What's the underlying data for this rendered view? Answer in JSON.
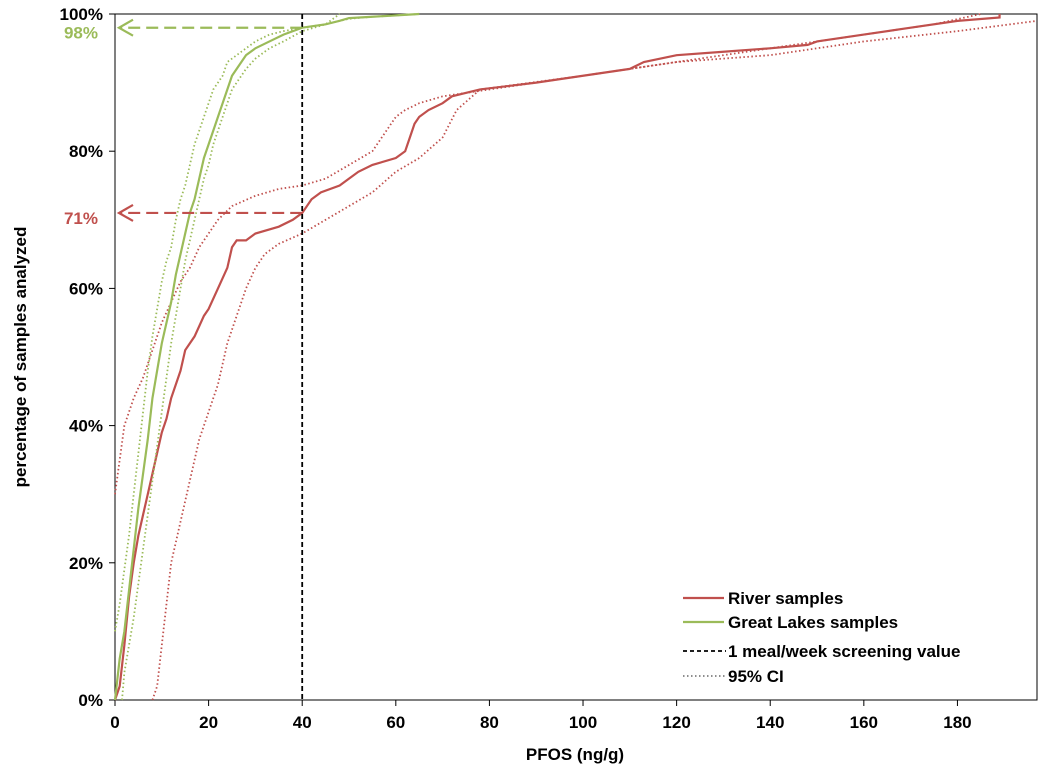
{
  "chart_data": {
    "type": "line",
    "xlabel": "PFOS (ng/g)",
    "ylabel": "percentage of samples analyzed",
    "xlim": [
      0,
      197
    ],
    "ylim": [
      0,
      100
    ],
    "x_ticks": [
      0,
      20,
      40,
      60,
      80,
      100,
      120,
      140,
      160,
      180
    ],
    "x_tick_labels": [
      "0",
      "20",
      "40",
      "60",
      "80",
      "100",
      "120",
      "140",
      "160",
      "180"
    ],
    "y_ticks": [
      0,
      20,
      40,
      60,
      80,
      100
    ],
    "y_tick_labels": [
      "0%",
      "20%",
      "40%",
      "60%",
      "80%",
      "100%"
    ],
    "grid": false,
    "legend_position": "bottom-right",
    "colors": {
      "river": "#c0504d",
      "great_lakes": "#9bbb59",
      "screening": "#000000",
      "ci": "#7f7f7f"
    },
    "legend": [
      {
        "label": "River samples",
        "style": "river"
      },
      {
        "label": "Great Lakes samples",
        "style": "great_lakes"
      },
      {
        "label": "1 meal/week screening value",
        "style": "screening"
      },
      {
        "label": "95% CI",
        "style": "ci"
      }
    ],
    "screening_value": {
      "x": 40,
      "y": [
        0,
        100
      ]
    },
    "annotations": [
      {
        "label": "98%",
        "y": 98,
        "x_from": 40,
        "series": "great_lakes"
      },
      {
        "label": "71%",
        "y": 71,
        "x_from": 40,
        "series": "river"
      }
    ],
    "series": [
      {
        "name": "River samples",
        "key": "river",
        "style": "solid",
        "x": [
          0,
          1,
          2,
          3,
          4,
          5,
          6,
          7,
          8,
          9,
          10,
          11,
          12,
          14,
          15,
          17,
          19,
          20,
          22,
          24,
          25,
          26,
          28,
          30,
          35,
          38,
          40,
          42,
          44,
          48,
          50,
          52,
          55,
          60,
          62,
          63,
          64,
          65,
          67,
          70,
          72,
          78,
          90,
          100,
          110,
          113,
          120,
          130,
          140,
          148,
          150,
          160,
          170,
          180,
          189,
          189
        ],
        "y": [
          0,
          2,
          8,
          15,
          20,
          24,
          27,
          30,
          33,
          36,
          39,
          41,
          44,
          48,
          51,
          53,
          56,
          57,
          60,
          63,
          66,
          67,
          67,
          68,
          69,
          70,
          71,
          73,
          74,
          75,
          76,
          77,
          78,
          79,
          80,
          82,
          84,
          85,
          86,
          87,
          88,
          89,
          90,
          91,
          92,
          93,
          94,
          94.5,
          95,
          95.5,
          96,
          97,
          98,
          99,
          99.5,
          100
        ]
      },
      {
        "name": "River 95% CI (upper)",
        "key": "river_ci_upper",
        "style": "dotted",
        "x": [
          0,
          1,
          2,
          4,
          6,
          8,
          10,
          12,
          14,
          16,
          18,
          20,
          22,
          25,
          30,
          35,
          40,
          45,
          50,
          55,
          58,
          60,
          62,
          65,
          70,
          80,
          90,
          100,
          120,
          140,
          160,
          175,
          185
        ],
        "y": [
          30,
          35,
          40,
          44,
          47,
          51,
          55,
          58,
          61,
          63,
          66,
          68,
          70,
          72,
          73.5,
          74.5,
          75,
          76,
          78,
          80,
          83,
          85,
          86,
          87,
          88,
          89,
          90,
          91,
          93,
          95,
          97,
          98.5,
          100
        ]
      },
      {
        "name": "River 95% CI (lower)",
        "key": "river_ci_lower",
        "style": "dotted",
        "x": [
          8,
          9,
          10,
          11,
          12,
          14,
          16,
          18,
          20,
          22,
          24,
          26,
          28,
          30,
          32,
          35,
          40,
          45,
          50,
          55,
          60,
          65,
          70,
          73,
          78,
          100,
          120,
          140,
          160,
          180,
          197
        ],
        "y": [
          0,
          2,
          8,
          14,
          20,
          26,
          32,
          38,
          42,
          46,
          52,
          56,
          60,
          63,
          65,
          66.5,
          68,
          70,
          72,
          74,
          77,
          79,
          82,
          86,
          89,
          91,
          93,
          94,
          96,
          97.5,
          99
        ]
      },
      {
        "name": "Great Lakes samples",
        "key": "great_lakes",
        "style": "solid",
        "x": [
          0,
          1,
          2,
          3,
          4,
          5,
          6,
          7,
          8,
          9,
          10,
          11,
          12,
          13,
          14,
          15,
          16,
          17,
          18,
          19,
          20,
          21,
          22,
          23,
          24,
          25,
          26,
          28,
          30,
          33,
          36,
          40,
          45,
          48,
          50,
          55,
          60,
          65
        ],
        "y": [
          0,
          6,
          10,
          16,
          22,
          28,
          33,
          38,
          44,
          48,
          52,
          55,
          58,
          62,
          65,
          68,
          71,
          73,
          76,
          79,
          81,
          83,
          85,
          87,
          89,
          91,
          92,
          94,
          95,
          96,
          97,
          98,
          98.5,
          99,
          99.4,
          99.6,
          99.8,
          100
        ]
      },
      {
        "name": "Great Lakes 95% CI (upper)",
        "key": "great_lakes_ci_upper",
        "style": "dotted",
        "x": [
          0,
          1,
          2,
          3,
          4,
          5,
          6,
          7,
          8,
          9,
          10,
          11,
          12,
          13,
          14,
          15,
          16,
          17,
          18,
          19,
          20,
          21,
          22,
          23,
          24,
          26,
          28,
          30,
          33,
          36,
          40,
          45,
          48,
          50,
          55,
          60,
          65
        ],
        "y": [
          10,
          14,
          19,
          24,
          30,
          36,
          42,
          48,
          53,
          57,
          61,
          64,
          66,
          70,
          73,
          75,
          78,
          81,
          83,
          85,
          87,
          89,
          90,
          91,
          93,
          94,
          95,
          96,
          97,
          97.5,
          98,
          98.5,
          99,
          99.3,
          99.6,
          99.8,
          100
        ]
      },
      {
        "name": "Great Lakes 95% CI (lower)",
        "key": "great_lakes_ci_lower",
        "style": "dotted",
        "x": [
          1.5,
          2,
          3,
          4,
          5,
          6,
          7,
          8,
          9,
          10,
          11,
          12,
          13,
          14,
          15,
          16,
          17,
          18,
          19,
          20,
          21,
          22,
          23,
          24,
          25,
          26,
          28,
          30,
          33,
          36,
          40,
          45,
          48
        ],
        "y": [
          0,
          4,
          8,
          12,
          17,
          22,
          27,
          32,
          37,
          42,
          47,
          52,
          56,
          60,
          64,
          67,
          70,
          73,
          76,
          78,
          81,
          83,
          85,
          87,
          89,
          90,
          92,
          93.5,
          95,
          96,
          97.5,
          98.5,
          100
        ]
      }
    ]
  }
}
